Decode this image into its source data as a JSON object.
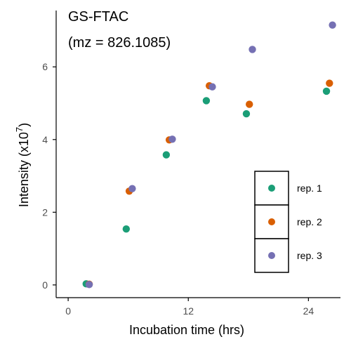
{
  "chart_data": {
    "type": "scatter",
    "annotation_lines": [
      "GS-FTAC",
      "(mz = 826.1085)"
    ],
    "xlabel": "Incubation time (hrs)",
    "ylabel_main": "Intensity (x10",
    "ylabel_exp": "7",
    "ylabel_close": ")",
    "xlim": [
      -1.2,
      27.2
    ],
    "ylim": [
      -0.35,
      7.55
    ],
    "x_ticks": [
      0,
      12,
      24
    ],
    "y_ticks": [
      0,
      2,
      4,
      6
    ],
    "grid": false,
    "legend_position": "bottom-right",
    "series": [
      {
        "name": "rep. 1",
        "color": "#1b9e77",
        "points": [
          [
            1.8,
            0.03
          ],
          [
            5.8,
            1.54
          ],
          [
            9.8,
            3.58
          ],
          [
            13.8,
            5.07
          ],
          [
            17.8,
            4.71
          ],
          [
            25.8,
            5.33
          ]
        ]
      },
      {
        "name": "rep. 2",
        "color": "#d95f02",
        "points": [
          [
            2.1,
            0.02
          ],
          [
            6.1,
            2.58
          ],
          [
            10.1,
            3.99
          ],
          [
            14.1,
            5.48
          ],
          [
            18.1,
            4.97
          ],
          [
            26.1,
            5.55
          ]
        ]
      },
      {
        "name": "rep. 3",
        "color": "#7570b3",
        "points": [
          [
            2.1,
            0.01
          ],
          [
            6.4,
            2.65
          ],
          [
            10.4,
            4.01
          ],
          [
            14.4,
            5.45
          ],
          [
            18.4,
            6.48
          ],
          [
            26.4,
            7.15
          ]
        ]
      }
    ]
  }
}
